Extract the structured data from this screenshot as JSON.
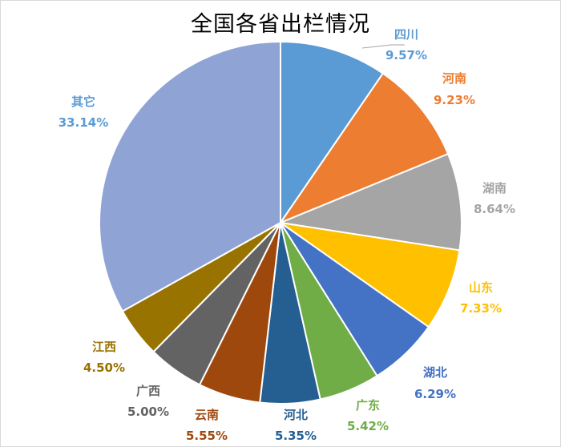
{
  "chart_data": {
    "type": "pie",
    "title": "全国各省出栏情况",
    "start_angle_deg": 0,
    "direction": "clockwise",
    "slices": [
      {
        "name": "四川",
        "value": 9.57,
        "label": "9.57%",
        "color": "#5b9bd5",
        "label_color": "#5b9bd5"
      },
      {
        "name": "河南",
        "value": 9.23,
        "label": "9.23%",
        "color": "#ed7d31",
        "label_color": "#ed7d31"
      },
      {
        "name": "湖南",
        "value": 8.64,
        "label": "8.64%",
        "color": "#a5a5a5",
        "label_color": "#a5a5a5"
      },
      {
        "name": "山东",
        "value": 7.33,
        "label": "7.33%",
        "color": "#ffc000",
        "label_color": "#ffc000"
      },
      {
        "name": "湖北",
        "value": 6.29,
        "label": "6.29%",
        "color": "#4472c4",
        "label_color": "#4472c4"
      },
      {
        "name": "广东",
        "value": 5.42,
        "label": "5.42%",
        "color": "#70ad47",
        "label_color": "#70ad47"
      },
      {
        "name": "河北",
        "value": 5.35,
        "label": "5.35%",
        "color": "#255e91",
        "label_color": "#255e91"
      },
      {
        "name": "云南",
        "value": 5.55,
        "label": "5.55%",
        "color": "#9e480e",
        "label_color": "#9e480e"
      },
      {
        "name": "广西",
        "value": 5.0,
        "label": "5.00%",
        "color": "#636363",
        "label_color": "#636363"
      },
      {
        "name": "江西",
        "value": 4.5,
        "label": "4.50%",
        "color": "#997300",
        "label_color": "#997300"
      },
      {
        "name": "其它",
        "value": 33.14,
        "label": "33.14%",
        "color": "#8fa4d5",
        "label_color": "#5b9bd5"
      }
    ]
  }
}
